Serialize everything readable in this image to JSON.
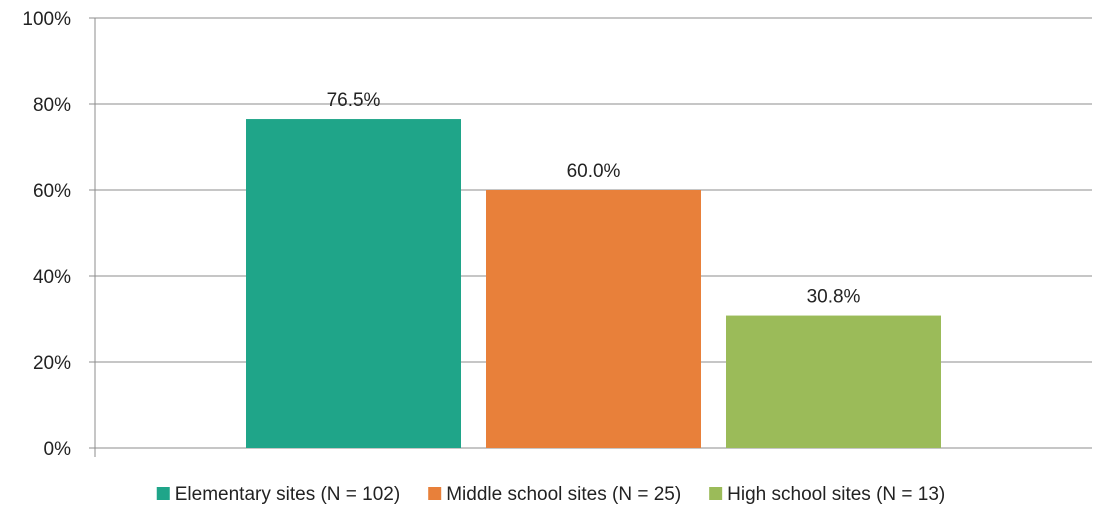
{
  "chart_data": {
    "type": "bar",
    "title": "",
    "xlabel": "",
    "ylabel": "",
    "ylim": [
      0,
      100
    ],
    "y_ticks": [
      "0%",
      "20%",
      "40%",
      "60%",
      "80%",
      "100%"
    ],
    "y_tick_values": [
      0,
      20,
      40,
      60,
      80,
      100
    ],
    "grid": true,
    "legend_position": "bottom",
    "series": [
      {
        "name": "Elementary sites (N = 102)",
        "value": 76.5,
        "label": "76.5%",
        "color": "#1FA589"
      },
      {
        "name": "Middle school sites (N = 25)",
        "value": 60.0,
        "label": "60.0%",
        "color": "#E8803A"
      },
      {
        "name": "High school sites (N = 13)",
        "value": 30.8,
        "label": "30.8%",
        "color": "#9BBB59"
      }
    ]
  }
}
